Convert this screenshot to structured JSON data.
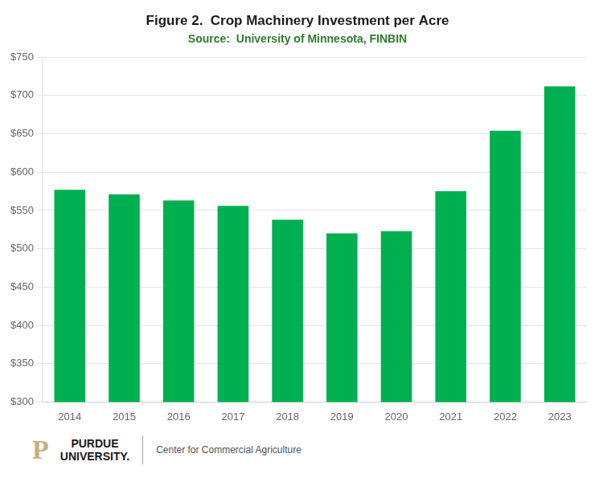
{
  "chart_data": {
    "type": "bar",
    "title": "Figure 2.  Crop Machinery Investment per Acre",
    "subtitle": "Source:  University of Minnesota, FINBIN",
    "categories": [
      "2014",
      "2015",
      "2016",
      "2017",
      "2018",
      "2019",
      "2020",
      "2021",
      "2022",
      "2023"
    ],
    "values": [
      577,
      571,
      563,
      556,
      538,
      520,
      523,
      575,
      654,
      712
    ],
    "color": "#00b050",
    "ylim": [
      300,
      750
    ],
    "yticks": [
      {
        "value": 300,
        "label": "$300"
      },
      {
        "value": 350,
        "label": "$350"
      },
      {
        "value": 400,
        "label": "$400"
      },
      {
        "value": 450,
        "label": "$450"
      },
      {
        "value": 500,
        "label": "$500"
      },
      {
        "value": 550,
        "label": "$550"
      },
      {
        "value": 600,
        "label": "$600"
      },
      {
        "value": 650,
        "label": "$650"
      },
      {
        "value": 700,
        "label": "$700"
      },
      {
        "value": 750,
        "label": "$750"
      }
    ],
    "grid": true,
    "annotations": [
      "P",
      "PURDUE\nUNIVERSITY.",
      "Center for Commercial Agriculture"
    ]
  }
}
